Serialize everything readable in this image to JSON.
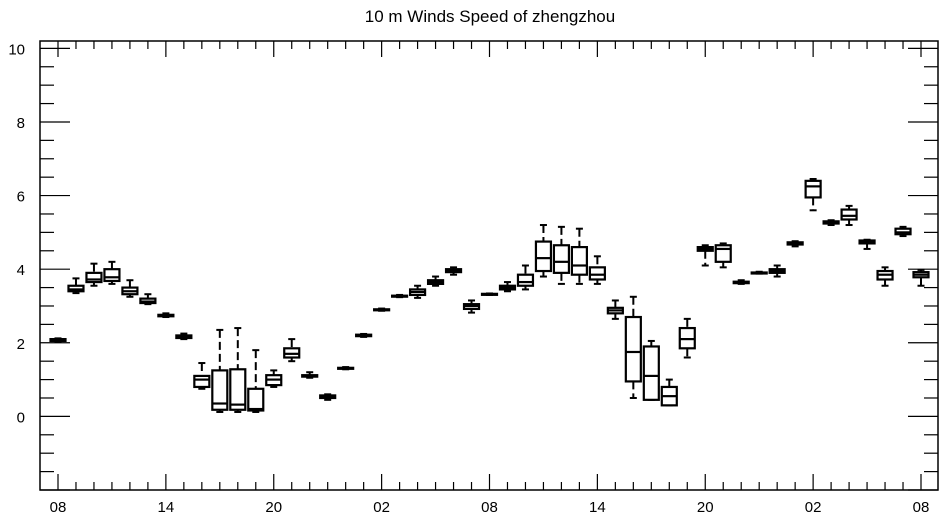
{
  "chart_data": {
    "type": "boxplot",
    "title": "10 m Winds Speed of zhengzhou",
    "xlabel": "",
    "ylabel": "",
    "ylim": [
      -2,
      10.2
    ],
    "y_ticks": [
      0,
      2,
      4,
      6,
      8,
      10
    ],
    "xlim": [
      0,
      48.5
    ],
    "x_ticks": [
      {
        "pos": 0,
        "label": "08"
      },
      {
        "pos": 6,
        "label": "14"
      },
      {
        "pos": 12,
        "label": "20"
      },
      {
        "pos": 18,
        "label": "02"
      },
      {
        "pos": 24,
        "label": "08"
      },
      {
        "pos": 30,
        "label": "14"
      },
      {
        "pos": 36,
        "label": "20"
      },
      {
        "pos": 42,
        "label": "02"
      },
      {
        "pos": 48,
        "label": "08"
      }
    ],
    "boxes": [
      {
        "x": 0,
        "min": 2.03,
        "q1": 2.05,
        "median": 2.07,
        "q3": 2.1,
        "max": 2.12
      },
      {
        "x": 1,
        "min": 3.35,
        "q1": 3.4,
        "median": 3.45,
        "q3": 3.55,
        "max": 3.75
      },
      {
        "x": 2,
        "min": 3.55,
        "q1": 3.65,
        "median": 3.72,
        "q3": 3.9,
        "max": 4.15
      },
      {
        "x": 3,
        "min": 3.6,
        "q1": 3.68,
        "median": 3.78,
        "q3": 4.0,
        "max": 4.2
      },
      {
        "x": 4,
        "min": 3.25,
        "q1": 3.32,
        "median": 3.4,
        "q3": 3.5,
        "max": 3.7
      },
      {
        "x": 5,
        "min": 3.05,
        "q1": 3.08,
        "median": 3.12,
        "q3": 3.2,
        "max": 3.32
      },
      {
        "x": 6,
        "min": 2.7,
        "q1": 2.72,
        "median": 2.74,
        "q3": 2.76,
        "max": 2.8
      },
      {
        "x": 7,
        "min": 2.1,
        "q1": 2.13,
        "median": 2.16,
        "q3": 2.2,
        "max": 2.25
      },
      {
        "x": 8,
        "min": 0.75,
        "q1": 0.8,
        "median": 1.0,
        "q3": 1.1,
        "max": 1.45
      },
      {
        "x": 9,
        "min": 0.12,
        "q1": 0.18,
        "median": 0.35,
        "q3": 1.25,
        "max": 2.35
      },
      {
        "x": 10,
        "min": 0.12,
        "q1": 0.18,
        "median": 0.32,
        "q3": 1.28,
        "max": 2.4
      },
      {
        "x": 11,
        "min": 0.12,
        "q1": 0.16,
        "median": 0.2,
        "q3": 0.75,
        "max": 1.8
      },
      {
        "x": 12,
        "min": 0.8,
        "q1": 0.85,
        "median": 1.0,
        "q3": 1.12,
        "max": 1.25
      },
      {
        "x": 13,
        "min": 1.5,
        "q1": 1.6,
        "median": 1.7,
        "q3": 1.85,
        "max": 2.1
      },
      {
        "x": 14,
        "min": 1.05,
        "q1": 1.08,
        "median": 1.1,
        "q3": 1.12,
        "max": 1.2
      },
      {
        "x": 15,
        "min": 0.45,
        "q1": 0.5,
        "median": 0.53,
        "q3": 0.57,
        "max": 0.6
      },
      {
        "x": 16,
        "min": 1.28,
        "q1": 1.3,
        "median": 1.31,
        "q3": 1.32,
        "max": 1.34
      },
      {
        "x": 17,
        "min": 2.16,
        "q1": 2.18,
        "median": 2.2,
        "q3": 2.22,
        "max": 2.24
      },
      {
        "x": 18,
        "min": 2.87,
        "q1": 2.89,
        "median": 2.9,
        "q3": 2.91,
        "max": 2.93
      },
      {
        "x": 19,
        "min": 3.24,
        "q1": 3.26,
        "median": 3.27,
        "q3": 3.28,
        "max": 3.3
      },
      {
        "x": 20,
        "min": 3.22,
        "q1": 3.3,
        "median": 3.38,
        "q3": 3.45,
        "max": 3.55
      },
      {
        "x": 21,
        "min": 3.55,
        "q1": 3.6,
        "median": 3.65,
        "q3": 3.7,
        "max": 3.8
      },
      {
        "x": 22,
        "min": 3.85,
        "q1": 3.92,
        "median": 3.97,
        "q3": 4.0,
        "max": 4.05
      },
      {
        "x": 23,
        "min": 2.82,
        "q1": 2.92,
        "median": 3.0,
        "q3": 3.05,
        "max": 3.15
      },
      {
        "x": 24,
        "min": 3.3,
        "q1": 3.31,
        "median": 3.32,
        "q3": 3.33,
        "max": 3.34
      },
      {
        "x": 25,
        "min": 3.4,
        "q1": 3.45,
        "median": 3.5,
        "q3": 3.55,
        "max": 3.65
      },
      {
        "x": 26,
        "min": 3.45,
        "q1": 3.55,
        "median": 3.65,
        "q3": 3.85,
        "max": 4.1
      },
      {
        "x": 27,
        "min": 3.8,
        "q1": 3.95,
        "median": 4.3,
        "q3": 4.75,
        "max": 5.2
      },
      {
        "x": 28,
        "min": 3.6,
        "q1": 3.9,
        "median": 4.2,
        "q3": 4.65,
        "max": 5.15
      },
      {
        "x": 29,
        "min": 3.6,
        "q1": 3.85,
        "median": 4.1,
        "q3": 4.6,
        "max": 5.1
      },
      {
        "x": 30,
        "min": 3.6,
        "q1": 3.72,
        "median": 3.85,
        "q3": 4.05,
        "max": 4.35
      },
      {
        "x": 31,
        "min": 2.65,
        "q1": 2.8,
        "median": 2.88,
        "q3": 2.95,
        "max": 3.15
      },
      {
        "x": 32,
        "min": 0.5,
        "q1": 0.95,
        "median": 1.75,
        "q3": 2.7,
        "max": 3.25
      },
      {
        "x": 33,
        "min": 0.45,
        "q1": 0.45,
        "median": 1.1,
        "q3": 1.9,
        "max": 2.05
      },
      {
        "x": 34,
        "min": 0.3,
        "q1": 0.3,
        "median": 0.55,
        "q3": 0.8,
        "max": 1.0
      },
      {
        "x": 35,
        "min": 1.6,
        "q1": 1.85,
        "median": 2.1,
        "q3": 2.4,
        "max": 2.65
      },
      {
        "x": 36,
        "min": 4.1,
        "q1": 4.5,
        "median": 4.55,
        "q3": 4.6,
        "max": 4.65
      },
      {
        "x": 37,
        "min": 4.05,
        "q1": 4.2,
        "median": 4.55,
        "q3": 4.65,
        "max": 4.7
      },
      {
        "x": 38,
        "min": 3.6,
        "q1": 3.62,
        "median": 3.64,
        "q3": 3.66,
        "max": 3.7
      },
      {
        "x": 39,
        "min": 3.88,
        "q1": 3.89,
        "median": 3.9,
        "q3": 3.91,
        "max": 3.93
      },
      {
        "x": 40,
        "min": 3.8,
        "q1": 3.9,
        "median": 3.95,
        "q3": 4.0,
        "max": 4.1
      },
      {
        "x": 41,
        "min": 4.62,
        "q1": 4.67,
        "median": 4.7,
        "q3": 4.73,
        "max": 4.76
      },
      {
        "x": 42,
        "min": 5.6,
        "q1": 5.95,
        "median": 6.25,
        "q3": 6.4,
        "max": 6.45
      },
      {
        "x": 43,
        "min": 5.2,
        "q1": 5.24,
        "median": 5.27,
        "q3": 5.3,
        "max": 5.33
      },
      {
        "x": 44,
        "min": 5.2,
        "q1": 5.35,
        "median": 5.45,
        "q3": 5.62,
        "max": 5.72
      },
      {
        "x": 45,
        "min": 4.55,
        "q1": 4.7,
        "median": 4.75,
        "q3": 4.78,
        "max": 4.8
      },
      {
        "x": 46,
        "min": 3.55,
        "q1": 3.72,
        "median": 3.85,
        "q3": 3.95,
        "max": 4.05
      },
      {
        "x": 47,
        "min": 4.9,
        "q1": 4.95,
        "median": 5.0,
        "q3": 5.1,
        "max": 5.15
      },
      {
        "x": 48,
        "min": 3.55,
        "q1": 3.78,
        "median": 3.85,
        "q3": 3.92,
        "max": 3.98
      }
    ]
  }
}
